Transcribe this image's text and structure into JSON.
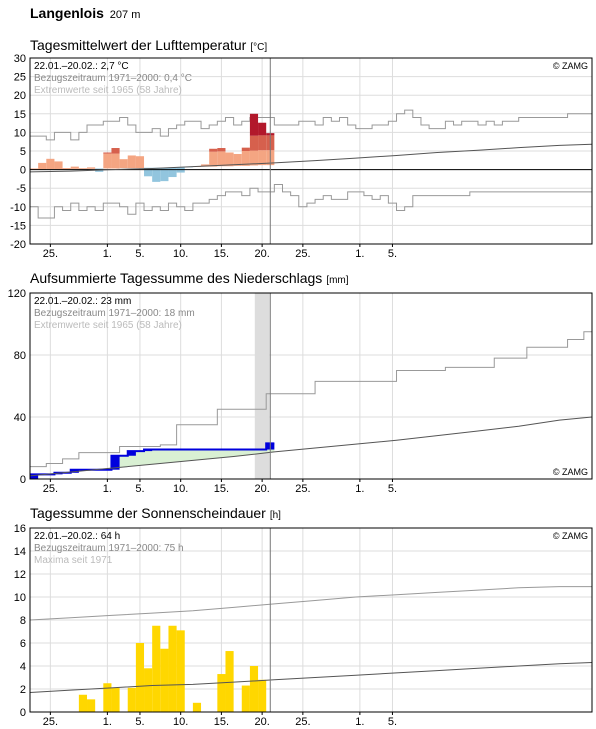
{
  "station": {
    "name": "Langenlois",
    "elevation": "207 m"
  },
  "colors": {
    "temp_warm": "#f4a582",
    "temp_warm_dark": "#d6604d",
    "temp_hot": "#b2182b",
    "temp_cold": "#92c5de",
    "precip": "#0000dd",
    "precip_fill": "#d9f0d3",
    "sunshine": "#ffd700",
    "envelope": "#999999",
    "climatology": "#555555",
    "grid": "#dddddd",
    "now_line": "#777777",
    "highlight": "#dddddd"
  },
  "chart_data": [
    {
      "type": "bar",
      "title": "Tagesmittelwert der Lufttemperatur",
      "unit": "[°C]",
      "info": [
        "22.01.–20.02.: 2,7 °C",
        "Bezugszeitraum 1971–2000: 0,4 °C",
        "Extremwerte seit 1965 (58 Jahre)"
      ],
      "copyright": "© ZAMG",
      "ylim": [
        -20,
        30
      ],
      "yticks": [
        30,
        25,
        20,
        15,
        10,
        5,
        0,
        -5,
        -10,
        -15,
        -20
      ],
      "xlim": [
        0,
        69
      ],
      "now_index": 29.5,
      "xticks": [
        {
          "x": 2.5,
          "label": "25."
        },
        {
          "x": 9.5,
          "label": "1."
        },
        {
          "x": 13.5,
          "label": "5."
        },
        {
          "x": 18.5,
          "label": "10."
        },
        {
          "x": 23.5,
          "label": "15."
        },
        {
          "x": 28.5,
          "label": "20."
        },
        {
          "x": 33.5,
          "label": "25."
        },
        {
          "x": 40.5,
          "label": "1."
        },
        {
          "x": 44.5,
          "label": "5."
        }
      ],
      "bars": [
        {
          "x": 0,
          "value": 0.3,
          "normal": 0.0
        },
        {
          "x": 1,
          "value": 1.8,
          "normal": 0.0
        },
        {
          "x": 2,
          "value": 2.9,
          "normal": 0.1
        },
        {
          "x": 3,
          "value": 2.2,
          "normal": 0.1
        },
        {
          "x": 4,
          "value": 0.4,
          "normal": 0.1
        },
        {
          "x": 5,
          "value": 0.8,
          "normal": 0.2
        },
        {
          "x": 6,
          "value": 0.4,
          "normal": 0.2
        },
        {
          "x": 7,
          "value": 0.6,
          "normal": 0.2
        },
        {
          "x": 8,
          "value": -0.6,
          "normal": 0.3
        },
        {
          "x": 9,
          "value": 4.6,
          "normal": 0.3
        },
        {
          "x": 10,
          "value": 5.8,
          "normal": 0.3
        },
        {
          "x": 11,
          "value": 2.8,
          "normal": 0.4
        },
        {
          "x": 12,
          "value": 3.8,
          "normal": 0.4
        },
        {
          "x": 13,
          "value": 3.6,
          "normal": 0.4
        },
        {
          "x": 14,
          "value": -1.8,
          "normal": 0.5
        },
        {
          "x": 15,
          "value": -3.3,
          "normal": 0.5
        },
        {
          "x": 16,
          "value": -3.1,
          "normal": 0.5
        },
        {
          "x": 17,
          "value": -2.0,
          "normal": 0.6
        },
        {
          "x": 18,
          "value": -0.8,
          "normal": 0.6
        },
        {
          "x": 19,
          "value": 0.6,
          "normal": 0.7
        },
        {
          "x": 20,
          "value": 0.9,
          "normal": 0.7
        },
        {
          "x": 21,
          "value": 1.4,
          "normal": 0.8
        },
        {
          "x": 22,
          "value": 5.6,
          "normal": 0.8
        },
        {
          "x": 23,
          "value": 5.8,
          "normal": 0.9
        },
        {
          "x": 24,
          "value": 4.6,
          "normal": 0.9
        },
        {
          "x": 25,
          "value": 4.2,
          "normal": 1.0
        },
        {
          "x": 26,
          "value": 5.9,
          "normal": 1.0
        },
        {
          "x": 27,
          "value": 15.0,
          "normal": 1.1
        },
        {
          "x": 28,
          "value": 12.6,
          "normal": 1.2
        },
        {
          "x": 29,
          "value": 9.8,
          "normal": 1.2
        }
      ],
      "climatology": [
        [
          0,
          -0.6
        ],
        [
          5,
          -0.4
        ],
        [
          10,
          0.0
        ],
        [
          15,
          0.3
        ],
        [
          20,
          0.8
        ],
        [
          25,
          1.3
        ],
        [
          30,
          1.8
        ],
        [
          35,
          2.4
        ],
        [
          40,
          3.1
        ],
        [
          45,
          3.8
        ],
        [
          50,
          4.6
        ],
        [
          55,
          5.2
        ],
        [
          60,
          5.9
        ],
        [
          65,
          6.5
        ],
        [
          69,
          6.8
        ]
      ],
      "max_envelope": [
        9,
        9,
        8,
        10,
        10,
        8,
        10,
        12,
        12,
        13,
        13,
        14,
        12,
        10,
        10,
        11,
        9,
        11,
        12,
        13,
        13,
        11,
        12,
        13,
        14,
        12,
        13,
        14,
        14,
        14,
        12,
        12,
        12,
        13,
        13,
        12,
        14,
        13,
        14,
        12,
        11,
        11,
        12,
        12,
        13,
        15,
        16,
        14,
        12,
        11,
        11,
        13,
        12,
        13,
        13,
        12,
        13,
        12,
        13,
        13,
        14,
        14,
        14,
        14,
        14,
        14,
        15,
        15,
        15
      ],
      "min_envelope": [
        -10,
        -13,
        -13,
        -10,
        -11,
        -9,
        -11,
        -10,
        -11,
        -9,
        -9,
        -10,
        -12,
        -9,
        -11,
        -10,
        -11,
        -9,
        -10,
        -11,
        -9,
        -9,
        -8,
        -7,
        -6,
        -6,
        -7,
        -5,
        -6,
        -6,
        -4,
        -6,
        -7,
        -10,
        -9,
        -8,
        -7,
        -8,
        -8,
        -6,
        -6,
        -7,
        -8,
        -7,
        -9,
        -11,
        -10,
        -7,
        -7,
        -7,
        -7,
        -7,
        -7,
        -7,
        -6,
        -6,
        -6,
        -6,
        -6,
        -6,
        -6,
        -6,
        -6,
        -6,
        -6,
        -6,
        -6,
        -6,
        -6
      ]
    },
    {
      "type": "area",
      "title": "Aufsummierte Tagessumme des Niederschlags",
      "unit": "[mm]",
      "info": [
        "22.01.–20.02.: 23 mm",
        "Bezugszeitraum 1971–2000: 18 mm",
        "Extremwerte seit 1965 (58 Jahre)"
      ],
      "copyright": "© ZAMG",
      "ylim": [
        0,
        120
      ],
      "yticks": [
        120,
        80,
        40,
        0
      ],
      "xlim": [
        0,
        69
      ],
      "now_index": 29.5,
      "highlight_range": [
        27.6,
        28.4
      ],
      "xticks": [
        {
          "x": 2.5,
          "label": "25."
        },
        {
          "x": 9.5,
          "label": "1."
        },
        {
          "x": 13.5,
          "label": "5."
        },
        {
          "x": 18.5,
          "label": "10."
        },
        {
          "x": 23.5,
          "label": "15."
        },
        {
          "x": 28.5,
          "label": "20."
        },
        {
          "x": 33.5,
          "label": "25."
        },
        {
          "x": 40.5,
          "label": "1."
        },
        {
          "x": 44.5,
          "label": "5."
        }
      ],
      "cumulative": [
        3,
        3,
        3,
        4,
        4,
        6,
        6,
        6,
        6,
        6,
        15,
        15,
        18,
        18,
        19,
        19,
        19,
        19,
        19,
        19,
        19,
        19,
        19,
        19,
        19,
        19,
        19,
        19,
        19,
        23
      ],
      "climatology": [
        [
          0,
          2.0
        ],
        [
          5,
          4.5
        ],
        [
          10,
          7.0
        ],
        [
          15,
          9.5
        ],
        [
          20,
          12.0
        ],
        [
          25,
          14.5
        ],
        [
          30,
          17.5
        ],
        [
          35,
          20.0
        ],
        [
          40,
          22.5
        ],
        [
          45,
          25.0
        ],
        [
          50,
          28.0
        ],
        [
          55,
          31.0
        ],
        [
          60,
          34.0
        ],
        [
          65,
          38.0
        ],
        [
          69,
          40.0
        ]
      ],
      "max_envelope": [
        8,
        8,
        10,
        10,
        13,
        13,
        17,
        17,
        17,
        17,
        17,
        21,
        21,
        21,
        21,
        21,
        22,
        22,
        35,
        35,
        35,
        35,
        35,
        45,
        45,
        45,
        45,
        45,
        45,
        55,
        55,
        55,
        55,
        55,
        55,
        63,
        63,
        63,
        63,
        63,
        63,
        63,
        63,
        63,
        63,
        70,
        70,
        70,
        70,
        70,
        70,
        72,
        72,
        72,
        72,
        72,
        72,
        78,
        78,
        78,
        78,
        85,
        85,
        85,
        85,
        85,
        90,
        90,
        95
      ],
      "min_envelope": [
        0,
        0,
        0,
        0,
        0,
        0,
        0,
        0,
        0,
        0,
        0,
        0,
        0,
        0,
        0,
        0,
        0,
        0,
        0,
        0,
        0,
        0,
        0,
        0,
        0,
        0,
        0,
        0,
        0,
        0,
        0,
        0,
        0,
        0,
        0,
        0,
        0,
        0,
        0,
        0,
        0,
        0,
        0,
        0,
        0,
        0,
        0,
        0,
        0,
        0,
        0,
        0,
        0,
        0,
        0,
        0,
        0,
        0,
        0,
        0,
        0,
        0,
        0,
        0,
        0,
        0,
        0,
        0,
        0
      ]
    },
    {
      "type": "bar",
      "title": "Tagessumme der Sonnenscheindauer",
      "unit": "[h]",
      "info": [
        "22.01.–20.02.: 64 h",
        "Bezugszeitraum 1971–2000: 75 h",
        "Maxima seit 1971"
      ],
      "copyright": "© ZAMG",
      "ylim": [
        0,
        16
      ],
      "yticks": [
        16,
        14,
        12,
        10,
        8,
        6,
        4,
        2,
        0
      ],
      "xlim": [
        0,
        69
      ],
      "now_index": 29.5,
      "xticks": [
        {
          "x": 2.5,
          "label": "25."
        },
        {
          "x": 9.5,
          "label": "1."
        },
        {
          "x": 13.5,
          "label": "5."
        },
        {
          "x": 18.5,
          "label": "10."
        },
        {
          "x": 23.5,
          "label": "15."
        },
        {
          "x": 28.5,
          "label": "20."
        },
        {
          "x": 33.5,
          "label": "25."
        },
        {
          "x": 40.5,
          "label": "1."
        },
        {
          "x": 44.5,
          "label": "5."
        }
      ],
      "values": [
        0,
        0,
        0,
        0,
        0,
        0,
        1.5,
        1.1,
        0,
        2.5,
        2.1,
        0,
        2.1,
        6.0,
        3.8,
        7.5,
        5.5,
        7.5,
        7.1,
        0,
        0.8,
        0,
        0,
        3.3,
        5.3,
        0,
        2.3,
        4.0,
        2.8,
        0
      ],
      "climatology": [
        [
          0,
          1.7
        ],
        [
          5,
          1.9
        ],
        [
          10,
          2.1
        ],
        [
          15,
          2.3
        ],
        [
          20,
          2.4
        ],
        [
          25,
          2.6
        ],
        [
          30,
          2.8
        ],
        [
          35,
          3.0
        ],
        [
          40,
          3.2
        ],
        [
          45,
          3.4
        ],
        [
          50,
          3.6
        ],
        [
          55,
          3.8
        ],
        [
          60,
          4.0
        ],
        [
          65,
          4.2
        ],
        [
          69,
          4.3
        ]
      ],
      "max_envelope": [
        [
          0,
          8.0
        ],
        [
          5,
          8.2
        ],
        [
          10,
          8.4
        ],
        [
          15,
          8.6
        ],
        [
          20,
          8.8
        ],
        [
          25,
          9.1
        ],
        [
          30,
          9.4
        ],
        [
          35,
          9.7
        ],
        [
          40,
          10.0
        ],
        [
          45,
          10.2
        ],
        [
          50,
          10.4
        ],
        [
          55,
          10.6
        ],
        [
          60,
          10.8
        ],
        [
          65,
          10.9
        ],
        [
          69,
          10.9
        ]
      ]
    }
  ]
}
